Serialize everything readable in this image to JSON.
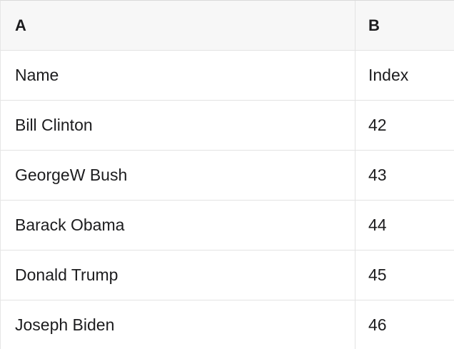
{
  "table": {
    "columns": [
      {
        "label": "A"
      },
      {
        "label": "B"
      }
    ],
    "rows": [
      {
        "a": "Name",
        "b": "Index"
      },
      {
        "a": "Bill Clinton",
        "b": "42"
      },
      {
        "a": "GeorgeW Bush",
        "b": "43"
      },
      {
        "a": "Barack Obama",
        "b": "44"
      },
      {
        "a": "Donald Trump",
        "b": "45"
      },
      {
        "a": "Joseph Biden",
        "b": "46"
      }
    ],
    "colors": {
      "header_background": "#f7f7f7",
      "grid_line": "#e3e3e3",
      "top_border": "#d9d9d9",
      "text": "#1c1c1e"
    }
  }
}
